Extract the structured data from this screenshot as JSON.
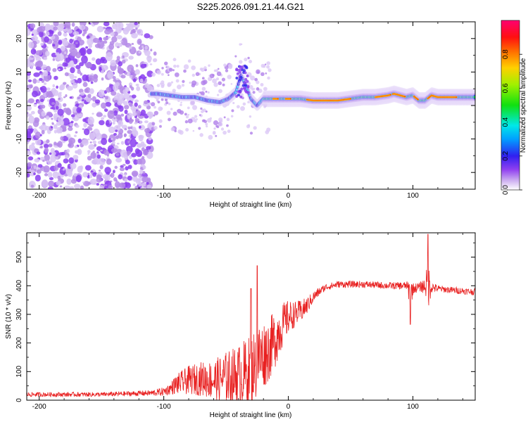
{
  "chart_data": [
    {
      "type": "heatmap",
      "title": "S225.2026.091.21.44.G21",
      "xlabel": "Height of straight line (km)",
      "ylabel": "Frequency (Hz)",
      "xlim": [
        -210,
        150
      ],
      "ylim": [
        -25,
        25
      ],
      "xticks": [
        -200,
        -100,
        0,
        100
      ],
      "yticks": [
        -20,
        -10,
        0,
        10,
        20
      ],
      "colorbar": {
        "label": "Normalized spectral amplitude",
        "range": [
          0.0,
          1.0
        ],
        "ticks": [
          "0.0",
          "0.2",
          "0.4",
          "0.6",
          "0.8"
        ]
      },
      "frequency_ridge": {
        "x": [
          -105,
          -95,
          -85,
          -75,
          -65,
          -55,
          -48,
          -42,
          -38,
          -34,
          -30,
          -25,
          -20,
          -10,
          0,
          10,
          20,
          30,
          40,
          50,
          60,
          70,
          80,
          85,
          90,
          95,
          100,
          105,
          110,
          115,
          120,
          130,
          140,
          150
        ],
        "frequency": [
          3.5,
          3,
          2.5,
          2.5,
          1.5,
          1,
          2,
          4,
          9,
          6,
          2,
          0,
          2,
          2,
          2,
          2,
          1.5,
          1.5,
          1.5,
          2,
          2.5,
          2.5,
          3,
          3.5,
          3,
          2.5,
          3,
          1.5,
          1.5,
          3,
          2.5,
          2.5,
          2.5,
          2.5
        ]
      }
    },
    {
      "type": "line",
      "series": [
        {
          "name": "SNR",
          "color": "#e82020"
        }
      ],
      "xlabel": "Height of straight line (km)",
      "ylabel": "SNR (10 * v/v)",
      "xlim": [
        -210,
        150
      ],
      "ylim": [
        0,
        585
      ],
      "xticks": [
        -200,
        -100,
        0,
        100
      ],
      "yticks": [
        0,
        100,
        200,
        300,
        400,
        500
      ],
      "envelope": {
        "x": [
          -210,
          -150,
          -110,
          -100,
          -95,
          -90,
          -80,
          -70,
          -60,
          -50,
          -40,
          -30,
          -25,
          -20,
          -15,
          -10,
          -5,
          0,
          5,
          10,
          15,
          20,
          25,
          30,
          40,
          60,
          80,
          95,
          98,
          100,
          105,
          110,
          112,
          115,
          120,
          130,
          140,
          150
        ],
        "mean": [
          20,
          20,
          25,
          30,
          40,
          55,
          70,
          75,
          70,
          80,
          85,
          100,
          140,
          160,
          180,
          220,
          260,
          290,
          300,
          310,
          330,
          360,
          380,
          395,
          405,
          405,
          400,
          400,
          370,
          390,
          395,
          400,
          400,
          395,
          390,
          385,
          382,
          378
        ],
        "spread": [
          8,
          8,
          10,
          15,
          20,
          35,
          50,
          60,
          70,
          90,
          110,
          130,
          130,
          120,
          110,
          100,
          80,
          60,
          45,
          40,
          30,
          20,
          15,
          12,
          12,
          12,
          12,
          14,
          60,
          20,
          15,
          30,
          90,
          20,
          12,
          12,
          12,
          12
        ]
      },
      "peaks": [
        {
          "x": -30,
          "y": 390
        },
        {
          "x": -27,
          "y": 120
        },
        {
          "x": -25,
          "y": 470
        },
        {
          "x": 98,
          "y": 265
        },
        {
          "x": 112,
          "y": 580
        }
      ]
    }
  ]
}
